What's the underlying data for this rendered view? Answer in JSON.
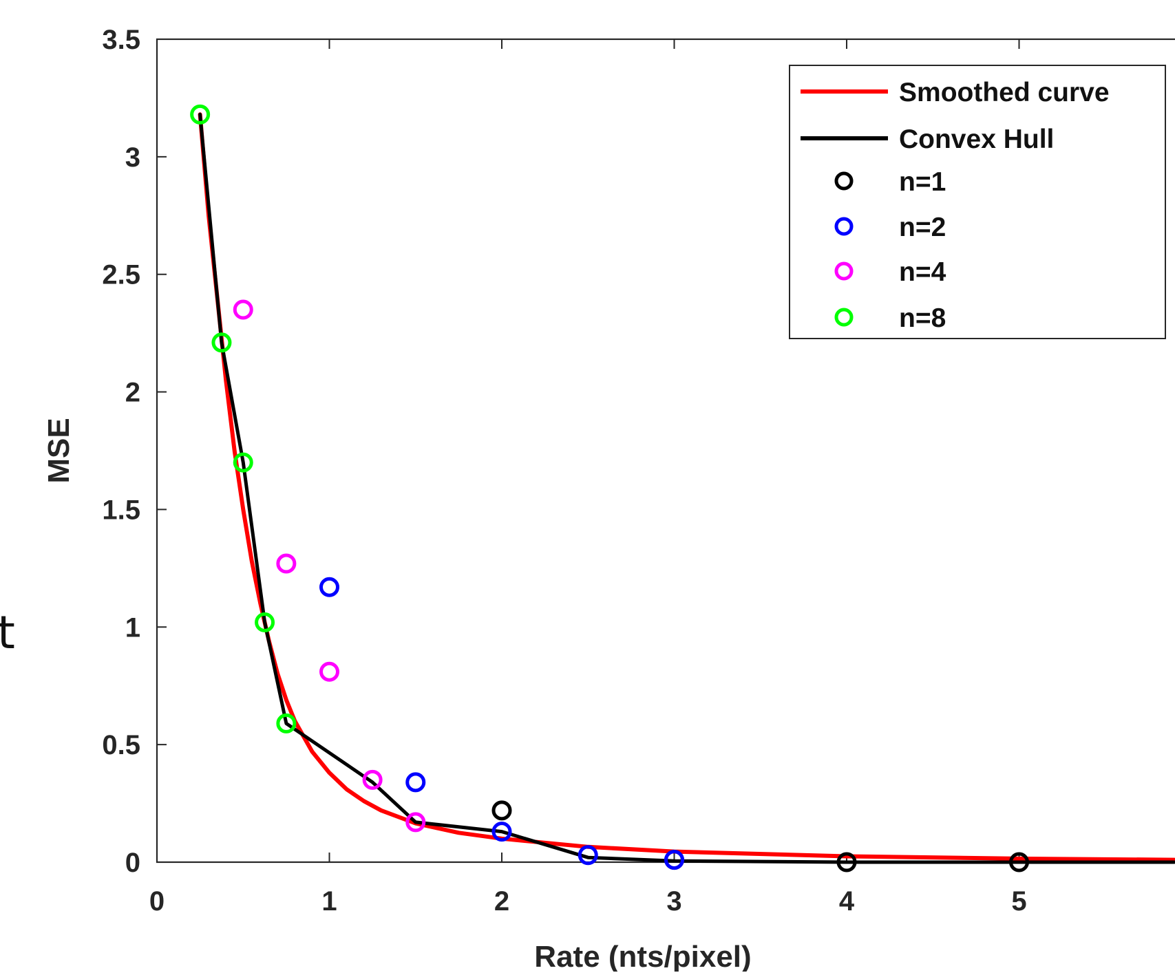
{
  "stray_text": "t",
  "chart_data": {
    "type": "scatter",
    "xlabel": "Rate (nts/pixel)",
    "ylabel": "MSE",
    "xlim": [
      0,
      5.9
    ],
    "ylim": [
      0,
      3.5
    ],
    "x_ticks": [
      "0",
      "1",
      "2",
      "3",
      "4",
      "5"
    ],
    "y_ticks": [
      "0",
      "0.5",
      "1",
      "1.5",
      "2",
      "2.5",
      "3",
      "3.5"
    ],
    "grid": false,
    "legend_position": "top-right",
    "legend": [
      "Smoothed curve",
      "Convex Hull",
      "n=1",
      "n=2",
      "n=4",
      "n=8"
    ],
    "series": [
      {
        "name": "Smoothed curve",
        "kind": "line",
        "color": "#ff0000",
        "x": [
          0.25,
          0.3,
          0.35,
          0.4,
          0.45,
          0.5,
          0.55,
          0.6,
          0.65,
          0.7,
          0.75,
          0.8,
          0.9,
          1.0,
          1.1,
          1.2,
          1.3,
          1.5,
          1.75,
          2.0,
          2.5,
          3.0,
          4.0,
          5.0,
          5.9
        ],
        "y": [
          3.18,
          2.75,
          2.4,
          2.05,
          1.75,
          1.5,
          1.28,
          1.1,
          0.94,
          0.8,
          0.69,
          0.6,
          0.47,
          0.38,
          0.31,
          0.26,
          0.22,
          0.165,
          0.125,
          0.1,
          0.065,
          0.045,
          0.025,
          0.015,
          0.01
        ]
      },
      {
        "name": "Convex Hull",
        "kind": "line",
        "color": "#000000",
        "x": [
          0.25,
          0.375,
          0.5,
          0.625,
          0.75,
          1.25,
          1.5,
          2.0,
          2.5,
          3.0,
          4.0,
          5.0,
          5.9
        ],
        "y": [
          3.18,
          2.21,
          1.7,
          1.02,
          0.59,
          0.34,
          0.17,
          0.13,
          0.02,
          0.005,
          0.0,
          0.0,
          0.0
        ]
      },
      {
        "name": "n=1",
        "kind": "scatter",
        "color": "#000000",
        "x": [
          2.0,
          3.0,
          4.0,
          5.0
        ],
        "y": [
          0.22,
          0.01,
          0.0,
          0.0
        ]
      },
      {
        "name": "n=2",
        "kind": "scatter",
        "color": "#0000ff",
        "x": [
          1.0,
          1.5,
          2.0,
          2.5,
          3.0
        ],
        "y": [
          1.17,
          0.34,
          0.13,
          0.03,
          0.01
        ]
      },
      {
        "name": "n=4",
        "kind": "scatter",
        "color": "#ff00ff",
        "x": [
          0.5,
          0.75,
          1.0,
          1.25,
          1.5
        ],
        "y": [
          2.35,
          1.27,
          0.81,
          0.35,
          0.17
        ]
      },
      {
        "name": "n=8",
        "kind": "scatter",
        "color": "#00ff00",
        "x": [
          0.25,
          0.375,
          0.5,
          0.625,
          0.75
        ],
        "y": [
          3.18,
          2.21,
          1.7,
          1.02,
          0.59
        ]
      }
    ]
  }
}
